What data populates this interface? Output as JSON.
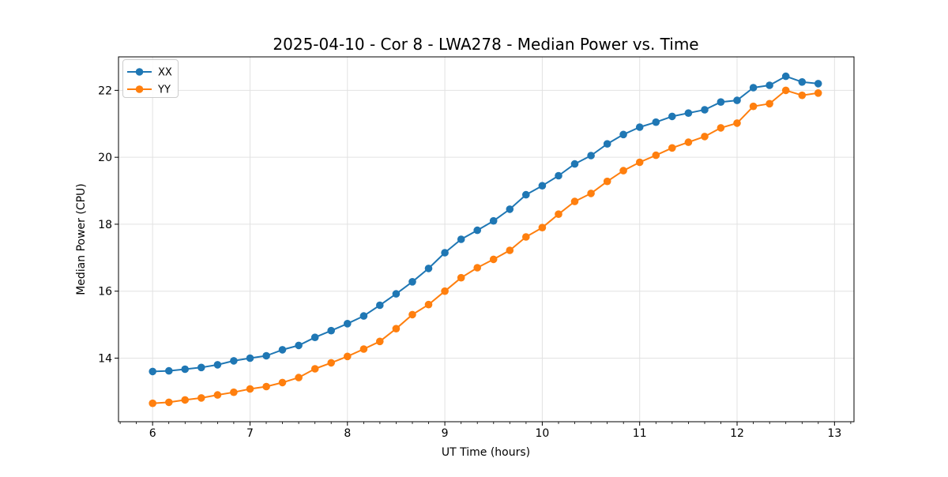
{
  "chart_data": {
    "type": "line",
    "title": "2025-04-10 - Cor 8 - LWA278 - Median Power vs. Time",
    "xlabel": "UT Time (hours)",
    "ylabel": "Median Power (CPU)",
    "xlim": [
      5.65,
      13.2
    ],
    "ylim": [
      12.1,
      23.0
    ],
    "x_ticks": [
      6,
      7,
      8,
      9,
      10,
      11,
      12,
      13
    ],
    "y_ticks": [
      14,
      16,
      18,
      20,
      22
    ],
    "x_minor_tick_step": 0.16667,
    "grid": true,
    "grid_color": "#e2e2e2",
    "legend_position": "upper-left",
    "x": [
      6.0,
      6.167,
      6.333,
      6.5,
      6.667,
      6.833,
      7.0,
      7.167,
      7.333,
      7.5,
      7.667,
      7.833,
      8.0,
      8.167,
      8.333,
      8.5,
      8.667,
      8.833,
      9.0,
      9.167,
      9.333,
      9.5,
      9.667,
      9.833,
      10.0,
      10.167,
      10.333,
      10.5,
      10.667,
      10.833,
      11.0,
      11.167,
      11.333,
      11.5,
      11.667,
      11.833,
      12.0,
      12.167,
      12.333,
      12.5,
      12.667,
      12.833
    ],
    "series": [
      {
        "name": "XX",
        "color": "#1f77b4",
        "values": [
          13.6,
          13.62,
          13.67,
          13.72,
          13.8,
          13.92,
          14.0,
          14.07,
          14.25,
          14.38,
          14.62,
          14.82,
          15.03,
          15.26,
          15.58,
          15.92,
          16.28,
          16.68,
          17.15,
          17.55,
          17.82,
          18.1,
          18.45,
          18.88,
          19.15,
          19.45,
          19.8,
          20.05,
          20.4,
          20.68,
          20.9,
          21.05,
          21.22,
          21.32,
          21.42,
          21.65,
          21.7,
          22.08,
          22.15,
          22.42,
          22.25,
          22.2
        ]
      },
      {
        "name": "YY",
        "color": "#ff7f0e",
        "values": [
          12.65,
          12.68,
          12.75,
          12.81,
          12.9,
          12.98,
          13.08,
          13.15,
          13.27,
          13.42,
          13.68,
          13.86,
          14.05,
          14.27,
          14.5,
          14.88,
          15.3,
          15.6,
          16.0,
          16.4,
          16.7,
          16.95,
          17.22,
          17.62,
          17.9,
          18.3,
          18.68,
          18.92,
          19.28,
          19.6,
          19.85,
          20.06,
          20.28,
          20.45,
          20.62,
          20.88,
          21.02,
          21.52,
          21.6,
          22.0,
          21.85,
          21.92
        ]
      }
    ]
  }
}
